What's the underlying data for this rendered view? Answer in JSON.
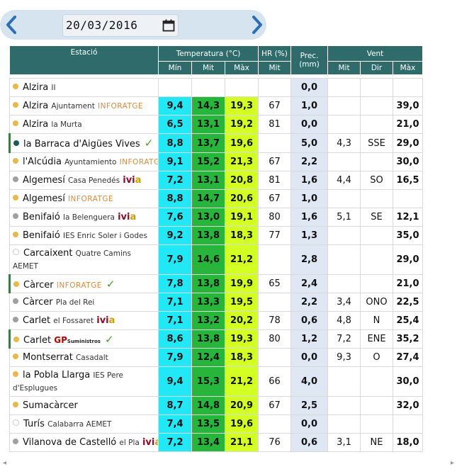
{
  "nav": {
    "date": "20/03/2016",
    "prev_icon": "chevron-left-icon",
    "next_icon": "chevron-right-icon",
    "calendar_icon": "calendar-icon"
  },
  "headers": {
    "station": "Estació",
    "temperature": "Temperatura (°C)",
    "humidity": "HR (%)",
    "precipitation_1": "Prec.",
    "precipitation_2": "(mm)",
    "wind": "Vent",
    "min": "Mín",
    "mit": "Mit",
    "max": "Màx",
    "hr_mit": "Mit",
    "wind_mit": "Mit",
    "dir": "Dir",
    "wind_max": "Màx"
  },
  "colors": {
    "orange_dot": "#e8b84a",
    "gray_dot": "#a0a0a0",
    "teal_dot": "#1e5a5a",
    "header_bg": "#2f6b6b"
  },
  "rows": [
    {
      "name": "Alzira",
      "sub": "II",
      "brand": "",
      "tmin": "",
      "tmit": "",
      "tmax": "",
      "hr": "",
      "prec": "0,0",
      "wmit": "",
      "dir": "",
      "wmax": ""
    },
    {
      "name": "Alzira",
      "sub": "Ajuntament",
      "brand": "INFORATGE",
      "tmin": "9,4",
      "tmit": "14,3",
      "tmax": "19,3",
      "hr": "67",
      "prec": "1,0",
      "wmit": "",
      "dir": "",
      "wmax": "39,0"
    },
    {
      "name": "Alzira",
      "sub": "la Murta",
      "brand": "",
      "tmin": "6,5",
      "tmit": "13,1",
      "tmax": "19,2",
      "hr": "81",
      "prec": "0,0",
      "wmit": "",
      "dir": "",
      "wmax": "21,0"
    },
    {
      "name": "la Barraca d'Aigües Vives",
      "sub": "",
      "brand": "",
      "tmin": "8,8",
      "tmit": "13,7",
      "tmax": "19,6",
      "hr": "",
      "prec": "5,0",
      "wmit": "4,3",
      "dir": "SSE",
      "wmax": "29,0"
    },
    {
      "name": "l'Alcúdia",
      "sub": "Ayuntamiento",
      "brand": "INFORATGE",
      "tmin": "9,1",
      "tmit": "15,2",
      "tmax": "21,3",
      "hr": "67",
      "prec": "2,2",
      "wmit": "",
      "dir": "",
      "wmax": "30,0"
    },
    {
      "name": "Algemesí",
      "sub": "Casa Penedés",
      "brand": "ivia",
      "tmin": "7,2",
      "tmit": "13,1",
      "tmax": "20,8",
      "hr": "81",
      "prec": "1,6",
      "wmit": "4,4",
      "dir": "SO",
      "wmax": "16,5"
    },
    {
      "name": "Algemesí",
      "sub": "",
      "brand": "INFORATGE",
      "tmin": "8,8",
      "tmit": "14,7",
      "tmax": "20,6",
      "hr": "67",
      "prec": "1,0",
      "wmit": "",
      "dir": "",
      "wmax": ""
    },
    {
      "name": "Benifaió",
      "sub": "la Belenguera",
      "brand": "ivia",
      "tmin": "7,6",
      "tmit": "13,0",
      "tmax": "19,1",
      "hr": "80",
      "prec": "1,6",
      "wmit": "5,1",
      "dir": "SE",
      "wmax": "12,1"
    },
    {
      "name": "Benifaió",
      "sub": "IES Enric Soler i Godes",
      "brand": "",
      "tmin": "9,2",
      "tmit": "13,8",
      "tmax": "18,3",
      "hr": "77",
      "prec": "1,3",
      "wmit": "",
      "dir": "",
      "wmax": "35,0"
    },
    {
      "name": "Carcaixent",
      "sub": "Quatre Camins",
      "sub2": "AEMET",
      "brand": "",
      "tmin": "7,9",
      "tmit": "14,6",
      "tmax": "21,2",
      "hr": "",
      "prec": "2,8",
      "wmit": "",
      "dir": "",
      "wmax": "29,0"
    },
    {
      "name": "Càrcer",
      "sub": "",
      "brand": "INFORATGE",
      "tmin": "7,8",
      "tmit": "13,8",
      "tmax": "19,9",
      "hr": "65",
      "prec": "2,4",
      "wmit": "",
      "dir": "",
      "wmax": "21,0"
    },
    {
      "name": "Càrcer",
      "sub": "Pla del Rei",
      "brand": "",
      "tmin": "7,1",
      "tmit": "13,3",
      "tmax": "19,5",
      "hr": "",
      "prec": "2,2",
      "wmit": "3,4",
      "dir": "ONO",
      "wmax": "22,5"
    },
    {
      "name": "Carlet",
      "sub": "el Fossaret",
      "brand": "ivia",
      "tmin": "7,1",
      "tmit": "13,2",
      "tmax": "20,2",
      "hr": "78",
      "prec": "0,6",
      "wmit": "4,8",
      "dir": "N",
      "wmax": "25,4"
    },
    {
      "name": "Carlet",
      "sub": "",
      "brand": "GP",
      "brand2": "Suministros",
      "tmin": "8,6",
      "tmit": "13,8",
      "tmax": "19,3",
      "hr": "80",
      "prec": "1,2",
      "wmit": "7,2",
      "dir": "ENE",
      "wmax": "35,2"
    },
    {
      "name": "Montserrat",
      "sub": "Casadalt",
      "brand": "",
      "tmin": "7,9",
      "tmit": "12,4",
      "tmax": "18,3",
      "hr": "",
      "prec": "0,0",
      "wmit": "9,3",
      "dir": "O",
      "wmax": "27,4"
    },
    {
      "name": "la Pobla Llarga",
      "sub": "IES Pere",
      "sub2": "d'Esplugues",
      "brand": "",
      "tmin": "9,4",
      "tmit": "15,3",
      "tmax": "21,2",
      "hr": "66",
      "prec": "4,0",
      "wmit": "",
      "dir": "",
      "wmax": "30,0"
    },
    {
      "name": "Sumacàrcer",
      "sub": "",
      "brand": "",
      "tmin": "8,7",
      "tmit": "14,8",
      "tmax": "20,9",
      "hr": "67",
      "prec": "2,5",
      "wmit": "",
      "dir": "",
      "wmax": "32,0"
    },
    {
      "name": "Turís",
      "sub": "Calabarra AEMET",
      "brand": "",
      "tmin": "7,4",
      "tmit": "13,5",
      "tmax": "19,6",
      "hr": "",
      "prec": "0,0",
      "wmit": "",
      "dir": "",
      "wmax": ""
    },
    {
      "name": "Vilanova de Castelló",
      "sub": "el Pla",
      "brand": "ivia",
      "tmin": "7,2",
      "tmit": "13,4",
      "tmax": "21,1",
      "hr": "76",
      "prec": "0,6",
      "wmit": "3,1",
      "dir": "NE",
      "wmax": "18,0"
    }
  ]
}
